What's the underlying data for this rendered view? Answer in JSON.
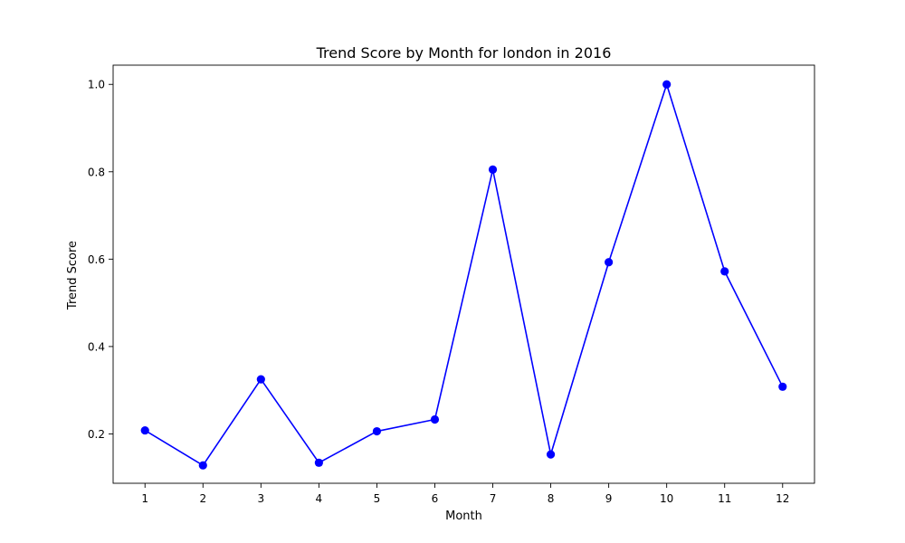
{
  "chart_data": {
    "type": "line",
    "title": "Trend Score by Month for london in 2016",
    "xlabel": "Month",
    "ylabel": "Trend Score",
    "x": [
      1,
      2,
      3,
      4,
      5,
      6,
      7,
      8,
      9,
      10,
      11,
      12
    ],
    "xticks": [
      "1",
      "2",
      "3",
      "4",
      "5",
      "6",
      "7",
      "8",
      "9",
      "10",
      "11",
      "12"
    ],
    "yticks": [
      "0.2",
      "0.4",
      "0.6",
      "0.8",
      "1.0"
    ],
    "ytick_values": [
      0.2,
      0.4,
      0.6,
      0.8,
      1.0
    ],
    "xlim": [
      0.45,
      12.55
    ],
    "ylim": [
      0.087,
      1.044
    ],
    "grid": false,
    "series": [
      {
        "values": [
          0.208,
          0.128,
          0.325,
          0.134,
          0.206,
          0.233,
          0.805,
          0.153,
          0.593,
          1.0,
          0.572,
          0.308
        ],
        "color": "#0000ff",
        "marker": "circle"
      }
    ]
  }
}
